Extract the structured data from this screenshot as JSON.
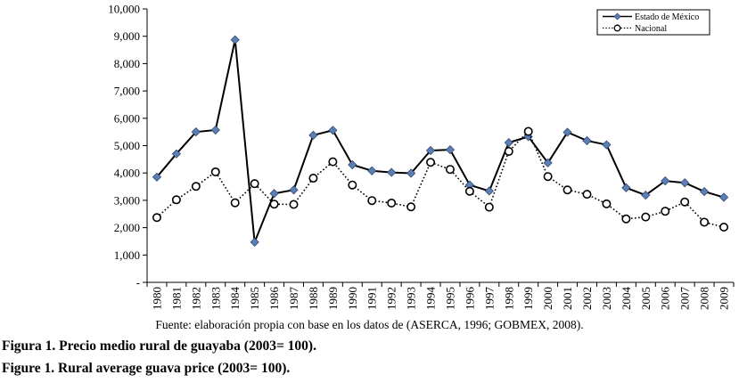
{
  "chart_data": {
    "type": "line",
    "title": "",
    "xlabel": "",
    "ylabel": "",
    "x": [
      "1980",
      "1981",
      "1982",
      "1983",
      "1984",
      "1985",
      "1986",
      "1987",
      "1988",
      "1989",
      "1990",
      "1991",
      "1992",
      "1993",
      "1994",
      "1995",
      "1996",
      "1997",
      "1998",
      "1999",
      "2000",
      "2001",
      "2002",
      "2003",
      "2004",
      "2005",
      "2006",
      "2007",
      "2008",
      "2009"
    ],
    "ylim": [
      0,
      10000
    ],
    "yticks": [
      0,
      1000,
      2000,
      3000,
      4000,
      5000,
      6000,
      7000,
      8000,
      9000,
      10000
    ],
    "ytick_labels": [
      "-",
      "1,000",
      "2,000",
      "3,000",
      "4,000",
      "5,000",
      "6,000",
      "7,000",
      "8,000",
      "9,000",
      "10,000"
    ],
    "grid": false,
    "legend_position": "top-right",
    "series": [
      {
        "name": "Estado de México",
        "style": "solid",
        "marker": "diamond",
        "color": "#000000",
        "marker_color": "#5b7fb5",
        "values": [
          3850,
          4700,
          5500,
          5570,
          8870,
          1470,
          3250,
          3380,
          5380,
          5560,
          4300,
          4080,
          4020,
          3990,
          4820,
          4850,
          3560,
          3340,
          5110,
          5330,
          4370,
          5490,
          5180,
          5030,
          3460,
          3190,
          3710,
          3640,
          3320,
          3110
        ]
      },
      {
        "name": "Nacional",
        "style": "dotted",
        "marker": "circle",
        "color": "#000000",
        "marker_color": "#ffffff",
        "values": [
          2370,
          3020,
          3510,
          4040,
          2910,
          3610,
          2860,
          2850,
          3810,
          4410,
          3560,
          2990,
          2900,
          2760,
          4390,
          4130,
          3330,
          2750,
          4790,
          5520,
          3870,
          3380,
          3220,
          2870,
          2320,
          2390,
          2600,
          2940,
          2200,
          2020
        ]
      }
    ]
  },
  "source_note": "Fuente: elaboración propia con base en los datos de (ASERCA, 1996; GOBMEX, 2008).",
  "caption_es": "Figura 1. Precio medio rural de guayaba (2003= 100).",
  "caption_en": "Figure 1. Rural average guava price (2003= 100)."
}
